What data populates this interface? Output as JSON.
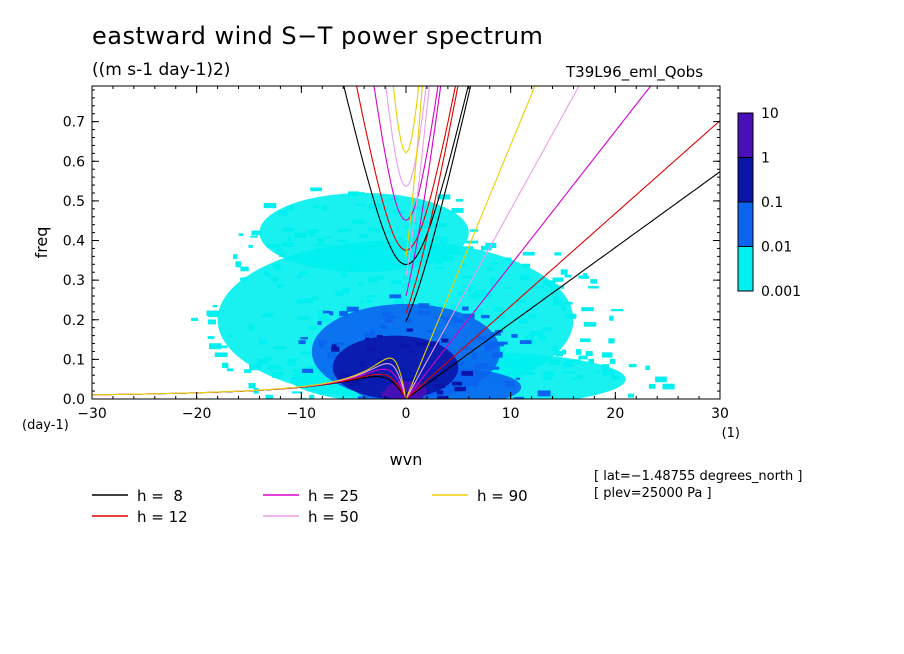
{
  "header": {
    "title": "eastward wind S−T power spectrum",
    "units": "((m s-1 day-1)2)",
    "run_name": "T39L96_eml_Qobs"
  },
  "annotations": {
    "lat": "[ lat=−1.48755 degrees_north ]",
    "plev": "[ plev=25000 Pa ]"
  },
  "chart_data": {
    "type": "heatmap",
    "title": "eastward wind S−T power spectrum",
    "subtitle": "((m s-1 day-1)2)",
    "xlabel": "wvn",
    "ylabel": "freq",
    "x_unit": "(1)",
    "y_unit": "(day-1)",
    "xlim": [
      -30,
      30
    ],
    "ylim": [
      0,
      0.79
    ],
    "x_ticks": [
      -30,
      -20,
      -10,
      0,
      10,
      20,
      30
    ],
    "x_tick_labels": [
      "−30",
      "−20",
      "−10",
      "0",
      "10",
      "20",
      "30"
    ],
    "y_ticks": [
      0,
      0.1,
      0.2,
      0.3,
      0.4,
      0.5,
      0.6,
      0.7
    ],
    "y_tick_labels": [
      "0.0",
      "0.1",
      "0.2",
      "0.3",
      "0.4",
      "0.5",
      "0.6",
      "0.7"
    ],
    "colorbar": {
      "levels": [
        "0.001",
        "0.01",
        "0.1",
        "1",
        "10"
      ],
      "colors": [
        "#00f0f0",
        "#0a64f0",
        "#0a14a8",
        "#4a10b8"
      ]
    },
    "contour_regions": [
      {
        "level": 0.001,
        "color": "#00f0f0",
        "shape": "ellipse",
        "x_center": -1,
        "y_center": 0.2,
        "x_half": 17,
        "y_half": 0.2
      },
      {
        "level": 0.001,
        "color": "#00f0f0",
        "shape": "ellipse",
        "x_center": 5,
        "y_center": 0.05,
        "x_half": 16,
        "y_half": 0.07
      },
      {
        "level": 0.001,
        "color": "#00f0f0",
        "shape": "ellipse",
        "x_center": -4,
        "y_center": 0.42,
        "x_half": 10,
        "y_half": 0.1
      },
      {
        "level": 0.01,
        "color": "#0a64f0",
        "shape": "ellipse",
        "x_center": 0,
        "y_center": 0.12,
        "x_half": 9,
        "y_half": 0.12
      },
      {
        "level": 0.01,
        "color": "#0a64f0",
        "shape": "ellipse",
        "x_center": 3,
        "y_center": 0.03,
        "x_half": 8,
        "y_half": 0.05
      },
      {
        "level": 0.1,
        "color": "#0a14a8",
        "shape": "ellipse",
        "x_center": -1,
        "y_center": 0.08,
        "x_half": 6,
        "y_half": 0.08
      },
      {
        "level": 1,
        "color": "#4a10b8",
        "shape": "ellipse",
        "x_center": 0,
        "y_center": 0.02,
        "x_half": 2,
        "y_half": 0.025
      }
    ],
    "dispersion_curves": [
      {
        "name": "h =  8",
        "label": "h =  8",
        "color": "#000000"
      },
      {
        "name": "h = 12",
        "label": "h = 12",
        "color": "#e00000"
      },
      {
        "name": "h = 25",
        "label": "h = 25",
        "color": "#d800c8"
      },
      {
        "name": "h = 50",
        "label": "h = 50",
        "color": "#e8a0e8"
      },
      {
        "name": "h = 90",
        "label": "h = 90",
        "color": "#e8d000"
      }
    ]
  }
}
